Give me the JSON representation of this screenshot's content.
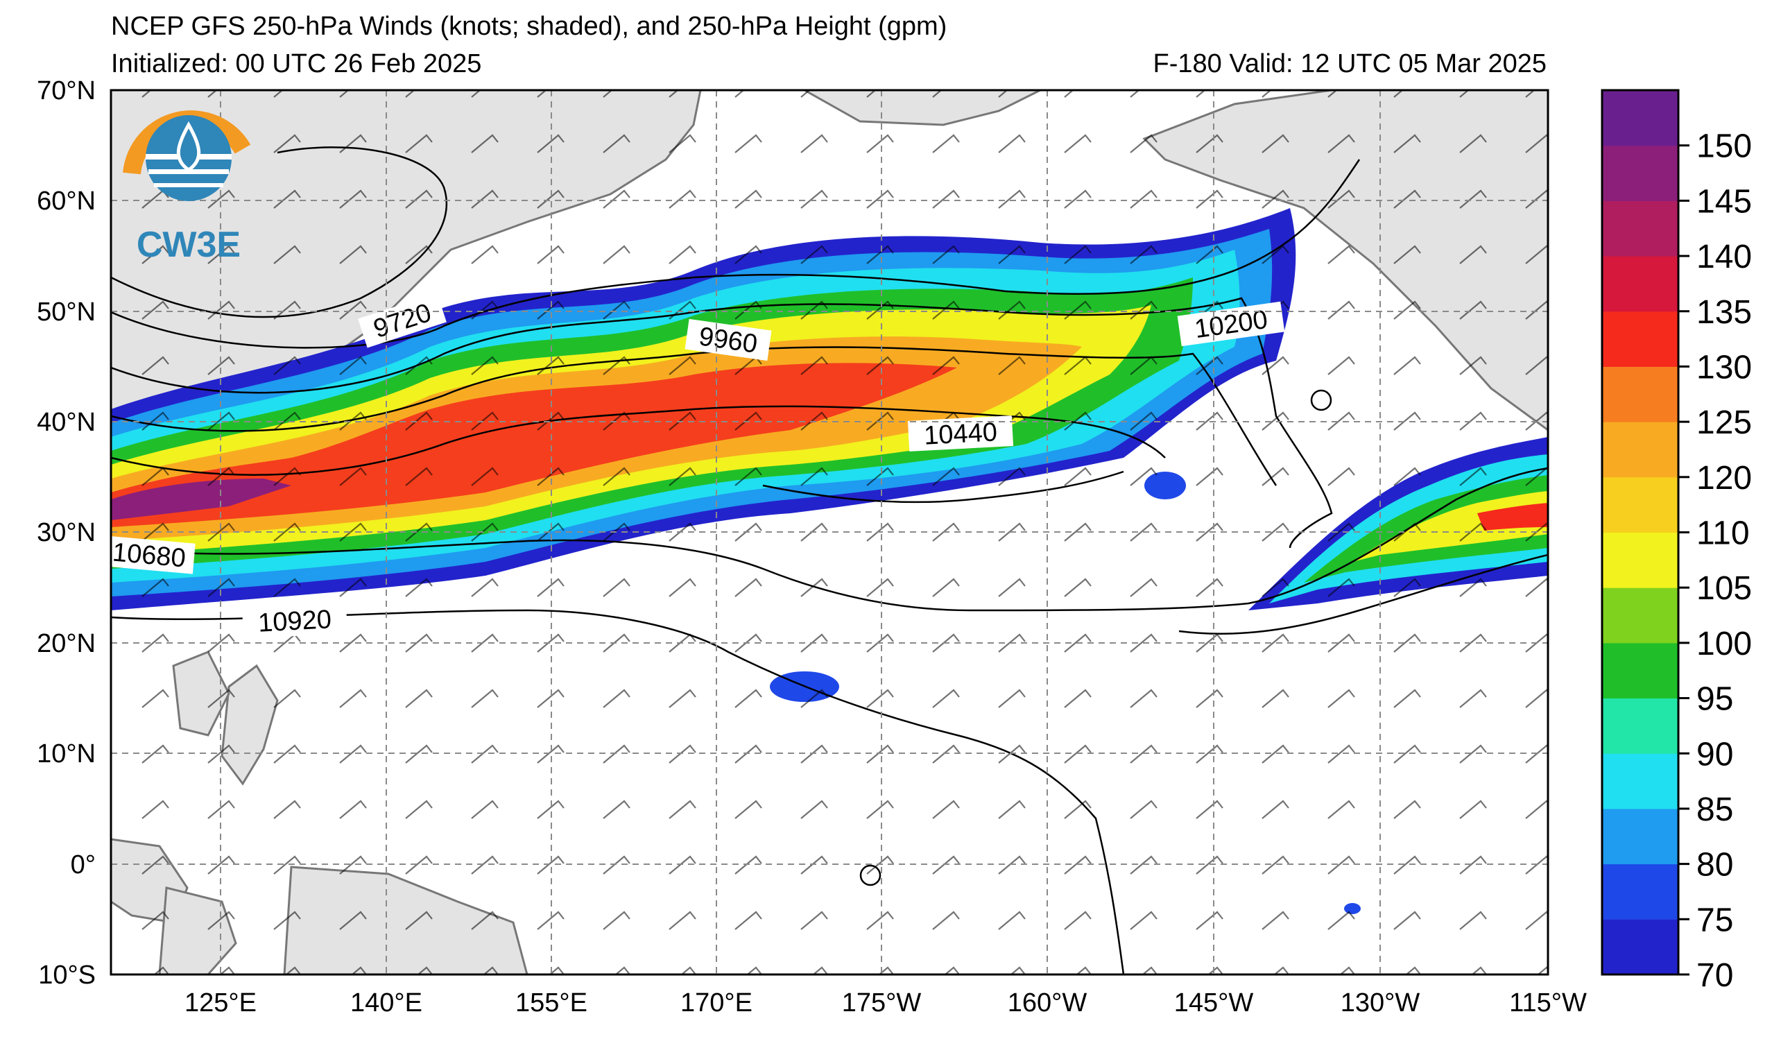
{
  "header": {
    "title": "NCEP GFS 250-hPa Winds (knots; shaded), and 250-hPa Height (gpm)",
    "initialized": "Initialized: 00 UTC 26 Feb 2025",
    "valid": "F-180  Valid: 12 UTC 05 Mar 2025"
  },
  "logo": {
    "text": "CW3E",
    "colors": {
      "orange": "#f39a22",
      "blue": "#2f86b8"
    }
  },
  "map": {
    "lon_labels": [
      "125°E",
      "140°E",
      "155°E",
      "170°E",
      "175°W",
      "160°W",
      "145°W",
      "130°W",
      "115°W"
    ],
    "lat_labels": [
      "70°N",
      "60°N",
      "50°N",
      "40°N",
      "30°N",
      "20°N",
      "10°N",
      "0°",
      "10°S"
    ],
    "land_color": "#e3e3e3",
    "height_contour_labels": [
      "9720",
      "9960",
      "10200",
      "10440",
      "10680",
      "10920"
    ]
  },
  "colorbar": {
    "unit": "knots",
    "labels": [
      "70",
      "75",
      "80",
      "85",
      "90",
      "95",
      "100",
      "105",
      "110",
      "120",
      "125",
      "130",
      "135",
      "140",
      "145",
      "150"
    ],
    "colors": [
      "#2323cc",
      "#1f48e8",
      "#1f9bf0",
      "#20dff0",
      "#22e6a8",
      "#20bf2a",
      "#7fd21e",
      "#f2f21e",
      "#f7cf1e",
      "#f8ab22",
      "#f77e20",
      "#f52a1c",
      "#d6183c",
      "#b01e60",
      "#8c1f7a",
      "#6a1f8e"
    ]
  }
}
